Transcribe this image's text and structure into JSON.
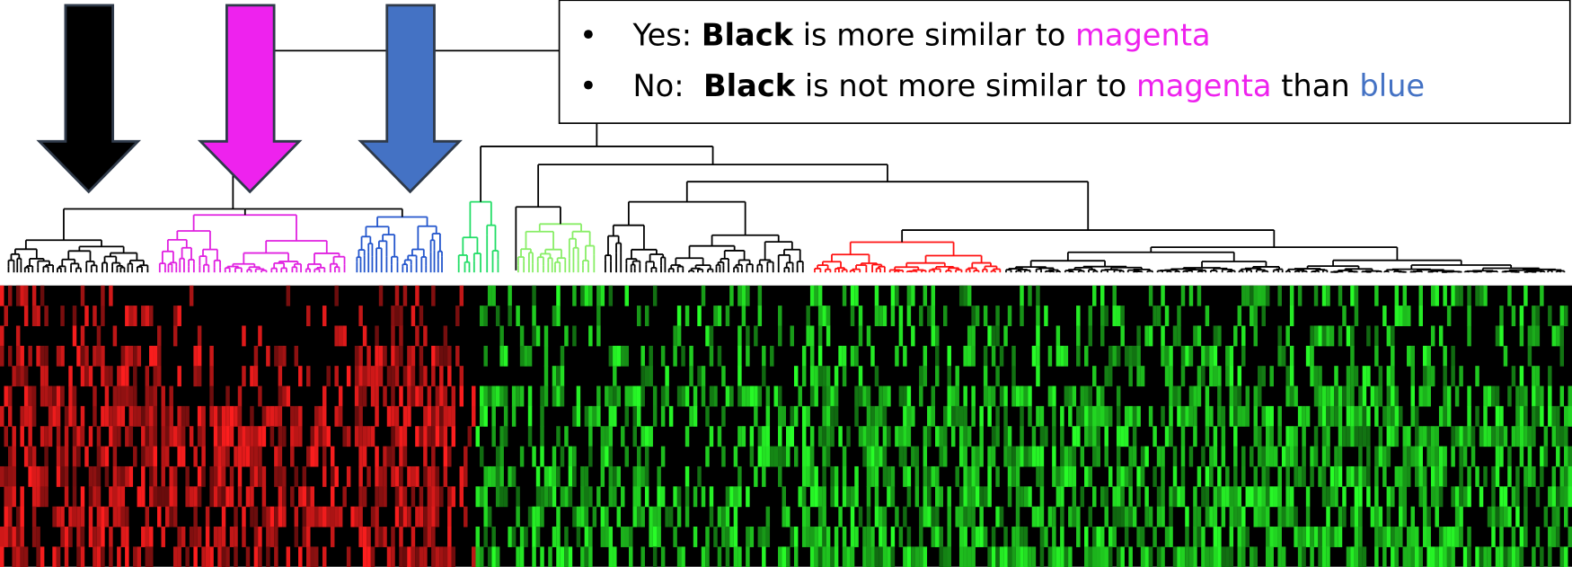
{
  "legend_box": {
    "items": [
      {
        "bullet": "•",
        "segments": [
          {
            "text": "Yes: ",
            "bold": false,
            "color": "#000000"
          },
          {
            "text": "Black",
            "bold": true,
            "color": "#000000"
          },
          {
            "text": " is more similar to ",
            "bold": false,
            "color": "#000000"
          },
          {
            "text": "magenta",
            "bold": false,
            "color": "#ee22ee"
          }
        ]
      },
      {
        "bullet": "•",
        "segments": [
          {
            "text": "No:  ",
            "bold": false,
            "color": "#000000"
          },
          {
            "text": "Black",
            "bold": true,
            "color": "#000000"
          },
          {
            "text": " is not more similar to ",
            "bold": false,
            "color": "#000000"
          },
          {
            "text": "magenta",
            "bold": false,
            "color": "#ee22ee"
          },
          {
            "text": " than ",
            "bold": false,
            "color": "#000000"
          },
          {
            "text": "blue",
            "bold": false,
            "color": "#4472c4"
          }
        ]
      }
    ]
  }
}
